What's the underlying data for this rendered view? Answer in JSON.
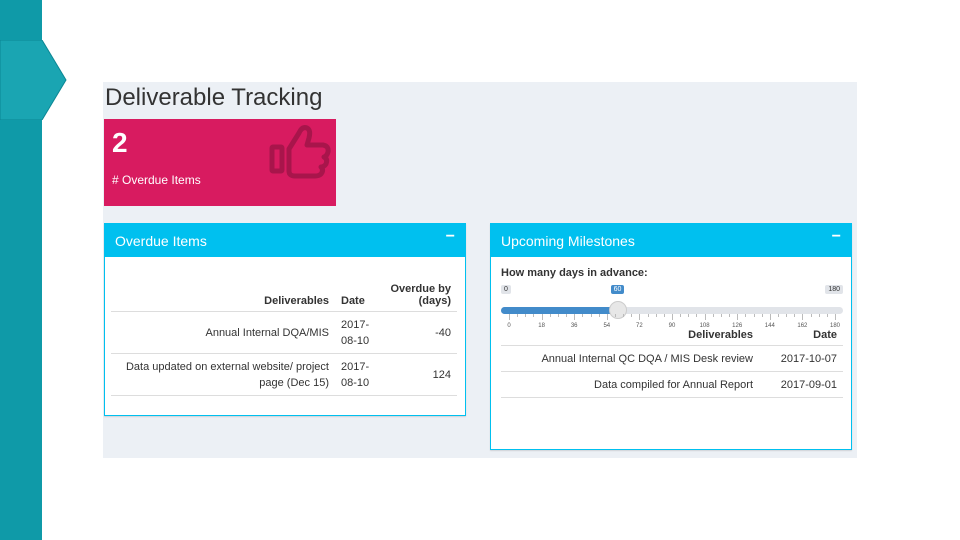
{
  "dashboard": {
    "title": "Deliverable Tracking",
    "value_box": {
      "value": "2",
      "label": "# Overdue Items",
      "icon": "thumbs-up-icon",
      "color": "#d81b60"
    },
    "overdue_box": {
      "title": "Overdue Items",
      "collapse_label": "−",
      "columns": [
        "Deliverables",
        "Date",
        "Overdue by (days)"
      ],
      "rows": [
        [
          "Annual Internal DQA/MIS",
          "2017-08-10",
          "-40"
        ],
        [
          "Data updated on external website/ project page (Dec 15)",
          "2017-08-10",
          "124"
        ]
      ]
    },
    "milestones_box": {
      "title": "Upcoming Milestones",
      "collapse_label": "−",
      "slider": {
        "label": "How many days in advance:",
        "min": 0,
        "max": 180,
        "value": 60,
        "min_label": "0",
        "value_label": "60",
        "max_label": "180",
        "tick_labels": [
          "0",
          "18",
          "36",
          "54",
          "72",
          "90",
          "108",
          "126",
          "144",
          "162",
          "180"
        ]
      },
      "columns": [
        "Deliverables",
        "Date"
      ],
      "rows": [
        [
          "Annual Internal QC DQA / MIS Desk review",
          "2017-10-07"
        ],
        [
          "Data compiled for Annual Report",
          "2017-09-01"
        ]
      ]
    }
  },
  "colors": {
    "sidebar": "#0f9aa8",
    "box_header": "#00c0ef",
    "slider_fill": "#428bca"
  }
}
